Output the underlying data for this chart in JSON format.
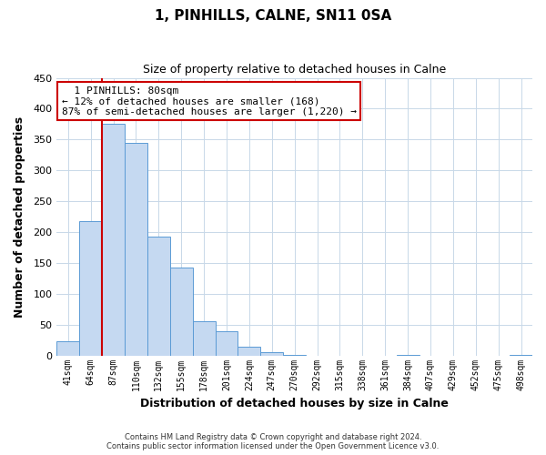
{
  "title": "1, PINHILLS, CALNE, SN11 0SA",
  "subtitle": "Size of property relative to detached houses in Calne",
  "xlabel": "Distribution of detached houses by size in Calne",
  "ylabel": "Number of detached properties",
  "bar_labels": [
    "41sqm",
    "64sqm",
    "87sqm",
    "110sqm",
    "132sqm",
    "155sqm",
    "178sqm",
    "201sqm",
    "224sqm",
    "247sqm",
    "270sqm",
    "292sqm",
    "315sqm",
    "338sqm",
    "361sqm",
    "384sqm",
    "407sqm",
    "429sqm",
    "452sqm",
    "475sqm",
    "498sqm"
  ],
  "bar_values": [
    23,
    218,
    375,
    345,
    192,
    143,
    56,
    40,
    14,
    6,
    1,
    0,
    0,
    0,
    0,
    1,
    0,
    0,
    0,
    0,
    1
  ],
  "bar_color": "#c5d9f1",
  "bar_edge_color": "#5b9bd5",
  "highlight_line_color": "#cc0000",
  "highlight_line_bar_index": 2,
  "ylim": [
    0,
    450
  ],
  "yticks": [
    0,
    50,
    100,
    150,
    200,
    250,
    300,
    350,
    400,
    450
  ],
  "annotation_title": "1 PINHILLS: 80sqm",
  "annotation_line1": "← 12% of detached houses are smaller (168)",
  "annotation_line2": "87% of semi-detached houses are larger (1,220) →",
  "annotation_box_color": "#ffffff",
  "annotation_box_edge": "#cc0000",
  "footer_line1": "Contains HM Land Registry data © Crown copyright and database right 2024.",
  "footer_line2": "Contains public sector information licensed under the Open Government Licence v3.0.",
  "background_color": "#ffffff",
  "grid_color": "#c8d8e8"
}
